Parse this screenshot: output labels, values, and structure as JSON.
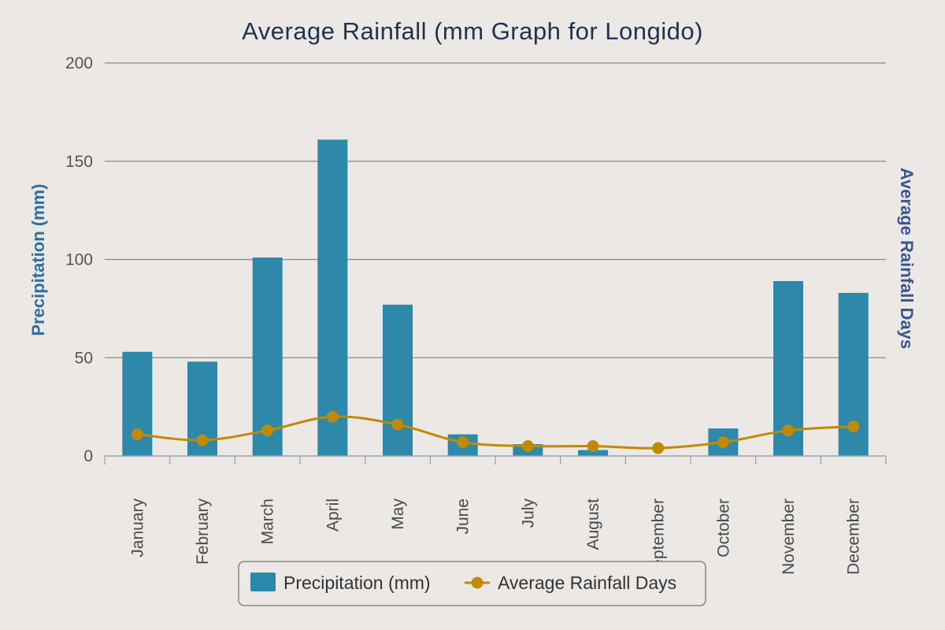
{
  "colors": {
    "background": "#ebe8e5",
    "bar": "#2e88aa",
    "line": "#c08a04",
    "grid": "#8e8a87",
    "title": "#1f3350",
    "axis_title_left": "#2e6f9e",
    "axis_title_right": "#3b568f"
  },
  "chart_data": {
    "type": "bar",
    "title": "Average Rainfall (mm Graph for Longido)",
    "categories": [
      "January",
      "February",
      "March",
      "April",
      "May",
      "June",
      "July",
      "August",
      "September",
      "October",
      "November",
      "December"
    ],
    "series": [
      {
        "name": "Precipitation (mm)",
        "type": "bar",
        "axis": "left",
        "values": [
          53,
          48,
          101,
          161,
          77,
          11,
          6,
          3,
          0,
          14,
          89,
          83
        ]
      },
      {
        "name": "Average Rainfall Days",
        "type": "line",
        "axis": "left",
        "values": [
          11,
          8,
          13,
          20,
          16,
          7,
          5,
          5,
          4,
          7,
          13,
          15
        ]
      }
    ],
    "ylabel": "Precipitation (mm)",
    "ylabel_right": "Average Rainfall Days",
    "xlabel": "",
    "ylim": [
      0,
      200
    ],
    "yticks": [
      "0",
      "50",
      "100",
      "150",
      "200"
    ],
    "grid": true,
    "legend_position": "bottom-center"
  }
}
